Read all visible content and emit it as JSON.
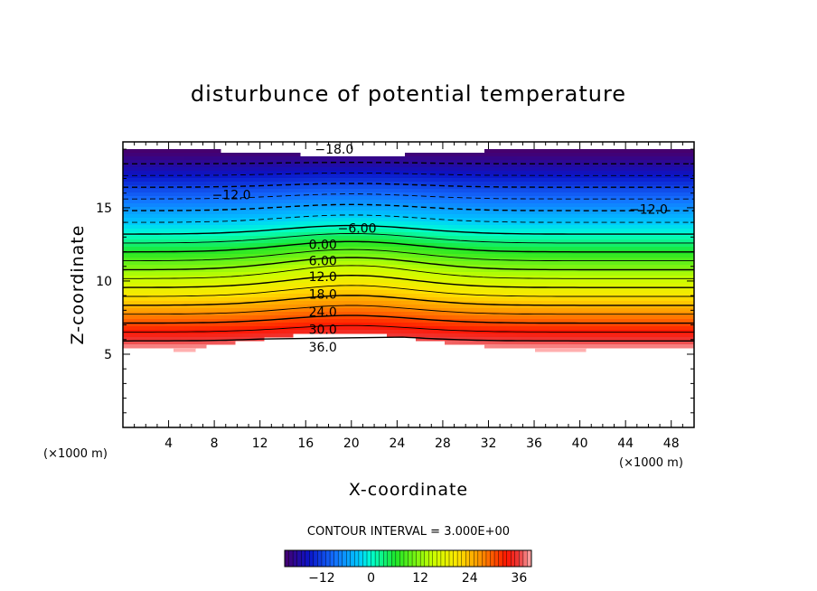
{
  "chart_data": {
    "type": "contour",
    "title": "disturbunce of potential temperature",
    "xlabel": "X-coordinate",
    "ylabel": "Z-coordinate",
    "x_unit": "(×1000 m)",
    "x_unit_right": "(×1000 m)",
    "xlim": [
      0,
      50
    ],
    "ylim": [
      0,
      19.5
    ],
    "x_ticks": [
      4,
      8,
      12,
      16,
      20,
      24,
      28,
      32,
      36,
      40,
      44,
      48
    ],
    "x_tick_labels": [
      "4",
      "8",
      "12",
      "16",
      "20",
      "24",
      "28",
      "32",
      "36",
      "40",
      "44",
      "48"
    ],
    "y_ticks": [
      5,
      10,
      15
    ],
    "y_tick_labels": [
      "5",
      "10",
      "15"
    ],
    "contour_interval_text": "CONTOUR INTERVAL = 3.000E+00",
    "contour_interval": 3,
    "negative_contours_dashed": true,
    "value_range": [
      -21,
      39
    ],
    "contour_labels": [
      {
        "text": "-18.0",
        "value": -18,
        "x": 18.5,
        "z": 19.0
      },
      {
        "text": "-12.0",
        "value": -12,
        "x": 9.5,
        "z": 15.9
      },
      {
        "text": "-12.0",
        "value": -12,
        "x": 46,
        "z": 14.9
      },
      {
        "text": "-6.00",
        "value": -6,
        "x": 20.5,
        "z": 13.6
      },
      {
        "text": "0.00",
        "value": 0,
        "x": 17.5,
        "z": 12.5
      },
      {
        "text": "6.00",
        "value": 6,
        "x": 17.5,
        "z": 11.4
      },
      {
        "text": "12.0",
        "value": 12,
        "x": 17.5,
        "z": 10.3
      },
      {
        "text": "18.0",
        "value": 18,
        "x": 17.5,
        "z": 9.1
      },
      {
        "text": "24.0",
        "value": 24,
        "x": 17.5,
        "z": 7.9
      },
      {
        "text": "30.0",
        "value": 30,
        "x": 17.5,
        "z": 6.7
      },
      {
        "text": "36.0",
        "value": 36,
        "x": 17.5,
        "z": 5.5
      }
    ],
    "colorbar": {
      "ticks": [
        -12,
        0,
        12,
        24,
        36
      ],
      "tick_labels": [
        "−12",
        "0",
        "12",
        "24",
        "36"
      ],
      "range": [
        -21,
        39
      ]
    },
    "colors": {
      "low": "#5a0078",
      "mid_low": "#1a6bff",
      "mid": "#00ffd0",
      "mid_high": "#e8ff00",
      "high": "#ff1a00",
      "top": "#ffb0b0"
    }
  }
}
